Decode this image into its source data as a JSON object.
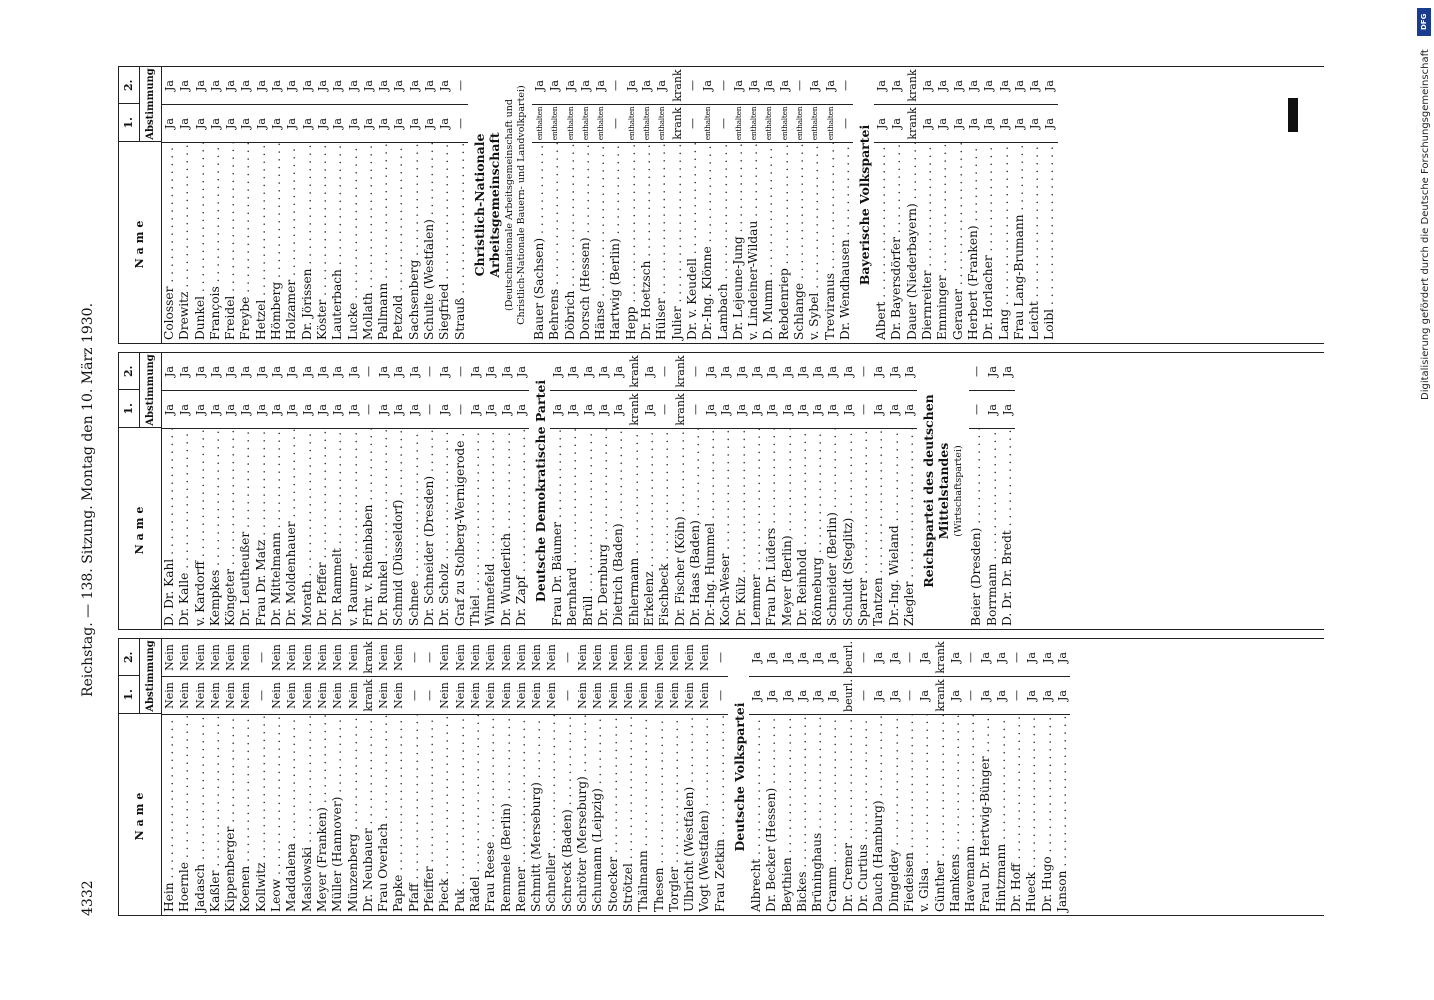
{
  "running_head": {
    "page_number": "4332",
    "center": "Reichstag. — 138. Sitzung. Montag den 10. März 1930."
  },
  "table_header": {
    "name": "Name",
    "vote1": "1.",
    "vote2": "2.",
    "votes_label": "Abstimmung"
  },
  "columns": [
    {
      "blocks": [
        {
          "type": "rows",
          "rows": [
            [
              "Hein",
              "Nein",
              "Nein"
            ],
            [
              "Hoernle",
              "Nein",
              "Nein"
            ],
            [
              "Jadasch",
              "Nein",
              "Nein"
            ],
            [
              "Kaßler",
              "Nein",
              "Nein"
            ],
            [
              "Kippenberger",
              "Nein",
              "Nein"
            ],
            [
              "Koenen",
              "Nein",
              "Nein"
            ],
            [
              "Kollwitz",
              "—",
              "—"
            ],
            [
              "Leow",
              "Nein",
              "Nein"
            ],
            [
              "Maddalena",
              "Nein",
              "Nein"
            ],
            [
              "Maslowski",
              "Nein",
              "Nein"
            ],
            [
              "Meyer (Franken)",
              "Nein",
              "Nein"
            ],
            [
              "Müller (Hannover)",
              "Nein",
              "Nein"
            ],
            [
              "Münzenberg",
              "Nein",
              "Nein"
            ],
            [
              "Dr. Neubauer",
              "krank",
              "krank"
            ],
            [
              "Frau Overlach",
              "Nein",
              "Nein"
            ],
            [
              "Papke",
              "Nein",
              "Nein"
            ],
            [
              "Pfaff",
              "—",
              "—"
            ],
            [
              "Pfeiffer",
              "—",
              "—"
            ],
            [
              "Pieck",
              "Nein",
              "Nein"
            ],
            [
              "Puk",
              "Nein",
              "Nein"
            ],
            [
              "Rädel",
              "Nein",
              "Nein"
            ],
            [
              "Frau Reese",
              "Nein",
              "Nein"
            ],
            [
              "Remmele (Berlin)",
              "Nein",
              "Nein"
            ],
            [
              "Renner",
              "Nein",
              "Nein"
            ],
            [
              "Schmitt (Merseburg)",
              "Nein",
              "Nein"
            ],
            [
              "Schneller",
              "Nein",
              "Nein"
            ],
            [
              "Schreck (Baden)",
              "—",
              "—"
            ],
            [
              "Schröter (Merseburg)",
              "Nein",
              "Nein"
            ],
            [
              "Schumann (Leipzig)",
              "Nein",
              "Nein"
            ],
            [
              "Stoecker",
              "Nein",
              "Nein"
            ],
            [
              "Strötzel",
              "Nein",
              "Nein"
            ],
            [
              "Thälmann",
              "Nein",
              "Nein"
            ],
            [
              "Thesen",
              "Nein",
              "Nein"
            ],
            [
              "Torgler",
              "Nein",
              "Nein"
            ],
            [
              "Ulbricht (Westfalen)",
              "Nein",
              "Nein"
            ],
            [
              "Vogt (Westfalen)",
              "Nein",
              "Nein"
            ],
            [
              "Frau Zetkin",
              "—",
              "—"
            ]
          ]
        },
        {
          "type": "party",
          "title": "Deutsche Volkspartei",
          "subtitle": ""
        },
        {
          "type": "rows",
          "rows": [
            [
              "Albrecht",
              "Ja",
              "Ja"
            ],
            [
              "Dr. Becker (Hessen)",
              "Ja",
              "Ja"
            ],
            [
              "Beythien",
              "Ja",
              "Ja"
            ],
            [
              "Bickes",
              "Ja",
              "Ja"
            ],
            [
              "Brüninghaus",
              "Ja",
              "Ja"
            ],
            [
              "Cramm",
              "Ja",
              "Ja"
            ],
            [
              "Dr. Cremer",
              "beurl.",
              "beurl."
            ],
            [
              "Dr. Curtius",
              "—",
              "—"
            ],
            [
              "Dauch (Hamburg)",
              "Ja",
              "Ja"
            ],
            [
              "Dingeldey",
              "Ja",
              "Ja"
            ],
            [
              "Fiedeisen",
              "—",
              "—"
            ],
            [
              "v. Gilsa",
              "Ja",
              "Ja"
            ],
            [
              "Günther",
              "krank",
              "krank"
            ],
            [
              "Hamkens",
              "Ja",
              "Ja"
            ],
            [
              "Havemann",
              "—",
              "—"
            ],
            [
              "Frau Dr. Hertwig-Bünger",
              "Ja",
              "Ja"
            ],
            [
              "Hintzmann",
              "Ja",
              "Ja"
            ],
            [
              "Dr. Hoff",
              "—",
              "—"
            ],
            [
              "Hueck",
              "Ja",
              "Ja"
            ],
            [
              "Dr. Hugo",
              "Ja",
              "Ja"
            ],
            [
              "Janson",
              "Ja",
              "Ja"
            ]
          ]
        }
      ]
    },
    {
      "blocks": [
        {
          "type": "rows",
          "rows": [
            [
              "D. Dr. Kahl",
              "Ja",
              "Ja"
            ],
            [
              "Dr. Kalle",
              "Ja",
              "Ja"
            ],
            [
              "v. Kardorff",
              "Ja",
              "Ja"
            ],
            [
              "Kempkes",
              "Ja",
              "Ja"
            ],
            [
              "Köngeter",
              "Ja",
              "Ja"
            ],
            [
              "Dr. Leutheußer",
              "Ja",
              "Ja"
            ],
            [
              "Frau Dr. Matz",
              "Ja",
              "Ja"
            ],
            [
              "Dr. Mittelmann",
              "Ja",
              "Ja"
            ],
            [
              "Dr. Moldenhauer",
              "Ja",
              "Ja"
            ],
            [
              "Morath",
              "Ja",
              "Ja"
            ],
            [
              "Dr. Pfeffer",
              "Ja",
              "Ja"
            ],
            [
              "Dr. Rammelt",
              "Ja",
              "Ja"
            ],
            [
              "v. Raumer",
              "Ja",
              "Ja"
            ],
            [
              "Frhr. v. Rheinbaben",
              "—",
              "—"
            ],
            [
              "Dr. Runkel",
              "Ja",
              "Ja"
            ],
            [
              "Schmid (Düsseldorf)",
              "Ja",
              "Ja"
            ],
            [
              "Schnee",
              "Ja",
              "Ja"
            ],
            [
              "Dr. Schneider (Dresden)",
              "—",
              "—"
            ],
            [
              "Dr. Scholz",
              "Ja",
              "Ja"
            ],
            [
              "Graf zu Stolberg-Wernigerode",
              "—",
              "—"
            ],
            [
              "Thiel",
              "Ja",
              "Ja"
            ],
            [
              "Winnefeld",
              "Ja",
              "Ja"
            ],
            [
              "Dr. Wunderlich",
              "Ja",
              "Ja"
            ],
            [
              "Dr. Zapf",
              "Ja",
              "Ja"
            ]
          ]
        },
        {
          "type": "party",
          "title": "Deutsche Demokratische Partei",
          "subtitle": ""
        },
        {
          "type": "rows",
          "rows": [
            [
              "Frau Dr. Bäumer",
              "Ja",
              "Ja"
            ],
            [
              "Bernhard",
              "Ja",
              "Ja"
            ],
            [
              "Brüll",
              "Ja",
              "Ja"
            ],
            [
              "Dr. Dernburg",
              "Ja",
              "Ja"
            ],
            [
              "Dietrich (Baden)",
              "Ja",
              "Ja"
            ],
            [
              "Ehlermann",
              "krank",
              "krank"
            ],
            [
              "Erkelenz",
              "Ja",
              "Ja"
            ],
            [
              "Fischbeck",
              "—",
              "—"
            ],
            [
              "Dr. Fischer (Köln)",
              "krank",
              "krank"
            ],
            [
              "Dr. Haas (Baden)",
              "—",
              "—"
            ],
            [
              "Dr.-Ing. Hummel",
              "Ja",
              "Ja"
            ],
            [
              "Koch-Weser",
              "Ja",
              "Ja"
            ],
            [
              "Dr. Külz",
              "Ja",
              "Ja"
            ],
            [
              "Lemmer",
              "Ja",
              "Ja"
            ],
            [
              "Frau Dr. Lüders",
              "Ja",
              "Ja"
            ],
            [
              "Meyer (Berlin)",
              "Ja",
              "Ja"
            ],
            [
              "Dr. Reinhold",
              "Ja",
              "Ja"
            ],
            [
              "Rönneburg",
              "Ja",
              "Ja"
            ],
            [
              "Schneider (Berlin)",
              "Ja",
              "Ja"
            ],
            [
              "Schuldt (Steglitz)",
              "Ja",
              "Ja"
            ],
            [
              "Sparrer",
              "—",
              "—"
            ],
            [
              "Tantzen",
              "Ja",
              "Ja"
            ],
            [
              "Dr.-Ing. Wieland",
              "Ja",
              "Ja"
            ],
            [
              "Ziegler",
              "Ja",
              "Ja"
            ]
          ]
        },
        {
          "type": "party",
          "title": "Reichspartei des deutschen Mittelstandes",
          "subtitle": "(Wirtschaftspartei)"
        },
        {
          "type": "rows",
          "rows": [
            [
              "Beier (Dresden)",
              "—",
              "—"
            ],
            [
              "Borrmann",
              "Ja",
              "Ja"
            ],
            [
              "D. Dr. Dr. Bredt",
              "Ja",
              "Ja"
            ]
          ]
        }
      ]
    },
    {
      "blocks": [
        {
          "type": "rows",
          "rows": [
            [
              "Colosser",
              "Ja",
              "Ja"
            ],
            [
              "Drewitz",
              "Ja",
              "Ja"
            ],
            [
              "Dunkel",
              "Ja",
              "Ja"
            ],
            [
              "François",
              "Ja",
              "Ja"
            ],
            [
              "Freidel",
              "Ja",
              "Ja"
            ],
            [
              "Freybe",
              "Ja",
              "Ja"
            ],
            [
              "Hetzel",
              "Ja",
              "Ja"
            ],
            [
              "Hömberg",
              "Ja",
              "Ja"
            ],
            [
              "Holzamer",
              "Ja",
              "Ja"
            ],
            [
              "Dr. Jörissen",
              "Ja",
              "Ja"
            ],
            [
              "Köster",
              "Ja",
              "Ja"
            ],
            [
              "Lauterbach",
              "Ja",
              "Ja"
            ],
            [
              "Lucke",
              "Ja",
              "Ja"
            ],
            [
              "Mollath",
              "Ja",
              "Ja"
            ],
            [
              "Pallmann",
              "Ja",
              "Ja"
            ],
            [
              "Petzold",
              "Ja",
              "Ja"
            ],
            [
              "Sachsenberg",
              "Ja",
              "Ja"
            ],
            [
              "Schulte (Westfalen)",
              "Ja",
              "Ja"
            ],
            [
              "Siegfried",
              "Ja",
              "Ja"
            ],
            [
              "Strauß",
              "—",
              "—"
            ]
          ]
        },
        {
          "type": "party",
          "title": "Christlich-Nationale Arbeitsgemeinschaft",
          "subtitle": "(Deutschnationale Arbeitsgemeinschaft und Christlich-Nationale Bauern- und Landvolkpartei)"
        },
        {
          "type": "rows",
          "rows": [
            [
              "Bauer (Sachsen)",
              "enthalten",
              "Ja"
            ],
            [
              "Behrens",
              "enthalten",
              "Ja"
            ],
            [
              "Döbrich",
              "enthalten",
              "Ja"
            ],
            [
              "Dorsch (Hessen)",
              "enthalten",
              "Ja"
            ],
            [
              "Hänse",
              "enthalten",
              "Ja"
            ],
            [
              "Hartwig (Berlin)",
              "—",
              "—"
            ],
            [
              "Hepp",
              "enthalten",
              "Ja"
            ],
            [
              "Dr. Hoetzsch",
              "enthalten",
              "Ja"
            ],
            [
              "Hülser",
              "enthalten",
              "Ja"
            ],
            [
              "Julier",
              "krank",
              "krank"
            ],
            [
              "Dr. v. Keudell",
              "—",
              "—"
            ],
            [
              "Dr.-Ing. Klönne",
              "enthalten",
              "Ja"
            ],
            [
              "Lambach",
              "—",
              "—"
            ],
            [
              "Dr. Lejeune-Jung",
              "enthalten",
              "Ja"
            ],
            [
              "v. Lindeiner-Wildau",
              "enthalten",
              "Ja"
            ],
            [
              "D. Mumm",
              "enthalten",
              "Ja"
            ],
            [
              "Rebdenriep",
              "enthalten",
              "Ja"
            ],
            [
              "Schlange",
              "enthalten",
              "—"
            ],
            [
              "v. Sybel",
              "enthalten",
              "Ja"
            ],
            [
              "Treviranus",
              "enthalten",
              "Ja"
            ],
            [
              "Dr. Wendhausen",
              "—",
              "—"
            ]
          ]
        },
        {
          "type": "party",
          "title": "Bayerische Volkspartei",
          "subtitle": ""
        },
        {
          "type": "rows",
          "rows": [
            [
              "Albert",
              "Ja",
              "Ja"
            ],
            [
              "Dr. Bayersdörfer",
              "Ja",
              "Ja"
            ],
            [
              "Dauer (Niederbayern)",
              "krank",
              "krank"
            ],
            [
              "Diernreiter",
              "Ja",
              "Ja"
            ],
            [
              "Emminger",
              "Ja",
              "Ja"
            ],
            [
              "Gerauer",
              "Ja",
              "Ja"
            ],
            [
              "Herbert (Franken)",
              "Ja",
              "Ja"
            ],
            [
              "Dr. Horlacher",
              "Ja",
              "Ja"
            ],
            [
              "Lang",
              "Ja",
              "Ja"
            ],
            [
              "Frau Lang-Brumann",
              "Ja",
              "Ja"
            ],
            [
              "Leicht",
              "Ja",
              "Ja"
            ],
            [
              "Loibl",
              "Ja",
              "Ja"
            ]
          ]
        }
      ]
    }
  ],
  "dfg_notice": {
    "logo": "DFG",
    "text": "Digitalisierung gefördert durch die Deutsche Forschungsgemeinschaft"
  }
}
